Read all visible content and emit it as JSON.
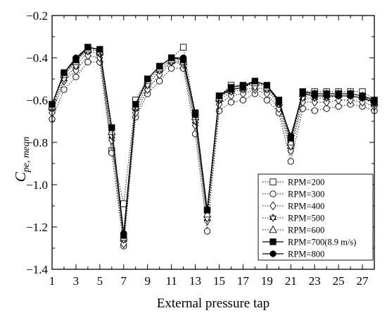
{
  "chart_data": {
    "type": "line",
    "title": "",
    "xlabel": "External pressure tap",
    "ylabel": "C",
    "ylabel_sub": "pe, mean",
    "xlim": [
      1,
      28
    ],
    "ylim": [
      -1.4,
      -0.2
    ],
    "xticks": [
      "1",
      "3",
      "5",
      "7",
      "9",
      "11",
      "13",
      "15",
      "17",
      "19",
      "21",
      "23",
      "25",
      "27"
    ],
    "yticks": [
      "-0.2",
      "-0.4",
      "-0.6",
      "-0.8",
      "-1.0",
      "-1.2",
      "-1.4"
    ],
    "x": [
      1,
      2,
      3,
      4,
      5,
      6,
      7,
      8,
      9,
      10,
      11,
      12,
      13,
      14,
      15,
      16,
      17,
      18,
      19,
      20,
      21,
      22,
      23,
      24,
      25,
      26,
      27,
      28
    ],
    "grid": false,
    "legend_position": "bottom-right",
    "series": [
      {
        "name": "RPM=200",
        "marker": "square-open",
        "line": "dotted",
        "values": [
          -0.62,
          -0.48,
          -0.42,
          -0.35,
          -0.37,
          -0.84,
          -1.09,
          -0.6,
          -0.5,
          -0.44,
          -0.4,
          -0.35,
          -0.67,
          -1.12,
          -0.58,
          -0.53,
          -0.53,
          -0.52,
          -0.53,
          -0.6,
          -0.8,
          -0.56,
          -0.56,
          -0.56,
          -0.56,
          -0.56,
          -0.56,
          -0.6
        ]
      },
      {
        "name": "RPM=300",
        "marker": "circle-open",
        "line": "dotted",
        "values": [
          -0.69,
          -0.55,
          -0.49,
          -0.42,
          -0.42,
          -0.85,
          -1.29,
          -0.68,
          -0.57,
          -0.51,
          -0.45,
          -0.45,
          -0.76,
          -1.22,
          -0.65,
          -0.61,
          -0.6,
          -0.57,
          -0.6,
          -0.66,
          -0.89,
          -0.64,
          -0.65,
          -0.64,
          -0.63,
          -0.62,
          -0.63,
          -0.65
        ]
      },
      {
        "name": "RPM=400",
        "marker": "diamond-open",
        "line": "dotted",
        "values": [
          -0.66,
          -0.51,
          -0.46,
          -0.39,
          -0.4,
          -0.79,
          -1.28,
          -0.66,
          -0.55,
          -0.48,
          -0.42,
          -0.43,
          -0.72,
          -1.17,
          -0.62,
          -0.58,
          -0.57,
          -0.55,
          -0.57,
          -0.64,
          -0.84,
          -0.61,
          -0.61,
          -0.61,
          -0.6,
          -0.6,
          -0.61,
          -0.63
        ]
      },
      {
        "name": "RPM=500",
        "marker": "star-open",
        "line": "dotted",
        "values": [
          -0.64,
          -0.5,
          -0.44,
          -0.37,
          -0.38,
          -0.77,
          -1.26,
          -0.64,
          -0.53,
          -0.46,
          -0.42,
          -0.42,
          -0.7,
          -1.16,
          -0.6,
          -0.56,
          -0.55,
          -0.54,
          -0.55,
          -0.62,
          -0.82,
          -0.59,
          -0.59,
          -0.59,
          -0.58,
          -0.58,
          -0.59,
          -0.62
        ]
      },
      {
        "name": "RPM=600",
        "marker": "triangle-open",
        "line": "dotted",
        "values": [
          -0.63,
          -0.48,
          -0.42,
          -0.36,
          -0.37,
          -0.75,
          -1.25,
          -0.63,
          -0.51,
          -0.45,
          -0.41,
          -0.42,
          -0.68,
          -1.14,
          -0.59,
          -0.55,
          -0.54,
          -0.52,
          -0.54,
          -0.61,
          -0.8,
          -0.57,
          -0.57,
          -0.57,
          -0.57,
          -0.57,
          -0.58,
          -0.61
        ]
      },
      {
        "name": "RPM=700(8.9 m/s)",
        "marker": "square-filled",
        "line": "solid",
        "values": [
          -0.62,
          -0.47,
          -0.41,
          -0.35,
          -0.36,
          -0.73,
          -1.24,
          -0.62,
          -0.5,
          -0.44,
          -0.4,
          -0.41,
          -0.66,
          -1.12,
          -0.58,
          -0.54,
          -0.53,
          -0.51,
          -0.53,
          -0.6,
          -0.78,
          -0.56,
          -0.57,
          -0.57,
          -0.57,
          -0.57,
          -0.58,
          -0.6
        ]
      },
      {
        "name": "RPM=800",
        "marker": "circle-filled",
        "line": "solid",
        "values": [
          -0.62,
          -0.47,
          -0.4,
          -0.35,
          -0.36,
          -0.73,
          -1.23,
          -0.62,
          -0.5,
          -0.44,
          -0.4,
          -0.4,
          -0.67,
          -1.12,
          -0.58,
          -0.55,
          -0.54,
          -0.51,
          -0.53,
          -0.61,
          -0.77,
          -0.57,
          -0.58,
          -0.58,
          -0.58,
          -0.58,
          -0.59,
          -0.61
        ]
      }
    ]
  }
}
